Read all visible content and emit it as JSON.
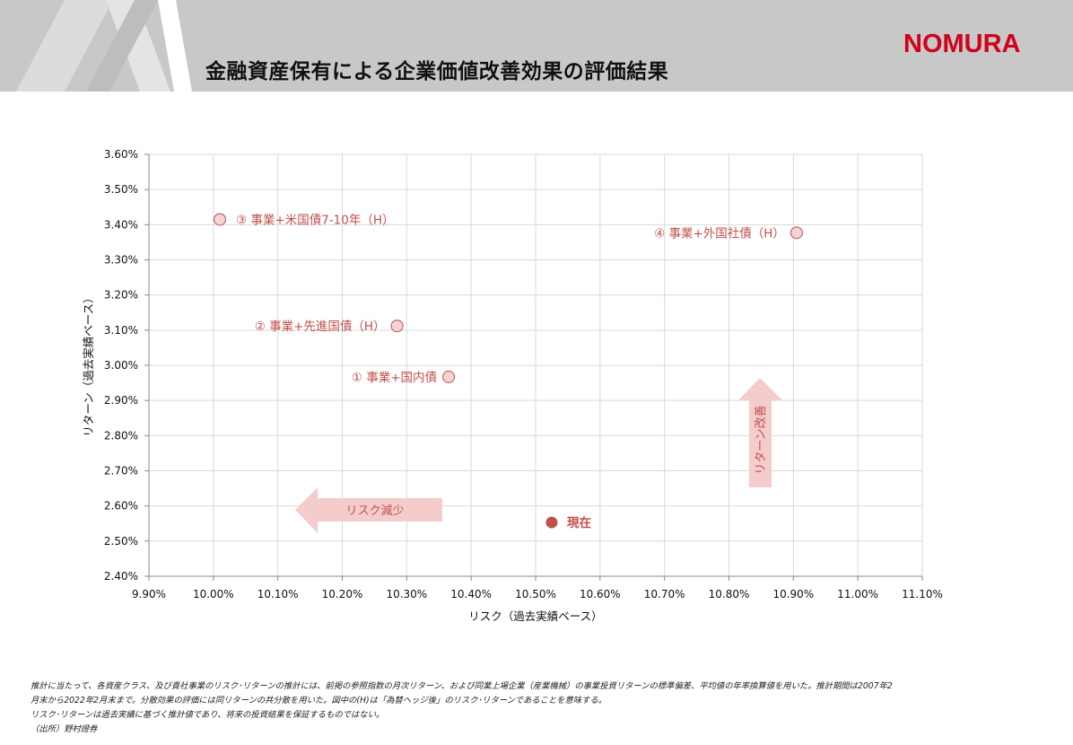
{
  "header": {
    "title": "金融資産保有による企業価値改善効果の評価結果",
    "logo": "NOMURA",
    "brand_color": "#d0021b"
  },
  "chart_data": {
    "type": "scatter",
    "xlabel": "リスク（過去実績ベース）",
    "ylabel": "リターン（過去実績ベース）",
    "xlim": [
      9.9,
      11.1
    ],
    "ylim": [
      2.4,
      3.6
    ],
    "x_ticks": [
      "9.90%",
      "10.00%",
      "10.10%",
      "10.20%",
      "10.30%",
      "10.40%",
      "10.50%",
      "10.60%",
      "10.70%",
      "10.80%",
      "10.90%",
      "11.00%",
      "11.10%"
    ],
    "y_ticks": [
      "3.60%",
      "3.50%",
      "3.40%",
      "3.30%",
      "3.20%",
      "3.10%",
      "3.00%",
      "2.90%",
      "2.80%",
      "2.70%",
      "2.60%",
      "2.50%",
      "2.40%"
    ],
    "grid": true,
    "points": [
      {
        "label": "③ 事業+米国債7-10年（H）",
        "x": 10.01,
        "y": 3.415,
        "current": false
      },
      {
        "label": "④ 事業+外国社債（H）",
        "x": 10.905,
        "y": 3.377,
        "current": false
      },
      {
        "label": "② 事業+先進国債（H）",
        "x": 10.285,
        "y": 3.112,
        "current": false
      },
      {
        "label": "① 事業+国内債",
        "x": 10.365,
        "y": 2.967,
        "current": false
      },
      {
        "label": "現在",
        "x": 10.525,
        "y": 2.553,
        "current": true
      }
    ],
    "annotations": {
      "risk_arrow": "リスク減少",
      "return_arrow": "リターン改善"
    },
    "colors": {
      "point_fill": "#f2d4d4",
      "point_stroke": "#c0504d",
      "current_fill": "#c0504d",
      "label": "#c0504d",
      "arrow": "#f4cccc",
      "grid": "#d9d9d9"
    }
  },
  "footnotes": [
    "推計に当たって、各資産クラス、及び貴社事業のリスク･リターンの推計には、前掲の参照指数の月次リターン、および同業上場企業（産業機械）の事業投資リターンの標準偏差、平均値の年率換算値を用いた。推計期間は2007年2",
    "月末から2022年2月末まで。分散効果の評価には同リターンの共分散を用いた。図中の(H)は「為替ヘッジ後」のリスク･リターンであることを意味する。",
    "リスク･リターンは過去実績に基づく推計値であり、将来の投資結果を保証するものではない。",
    "（出所）野村證券"
  ]
}
